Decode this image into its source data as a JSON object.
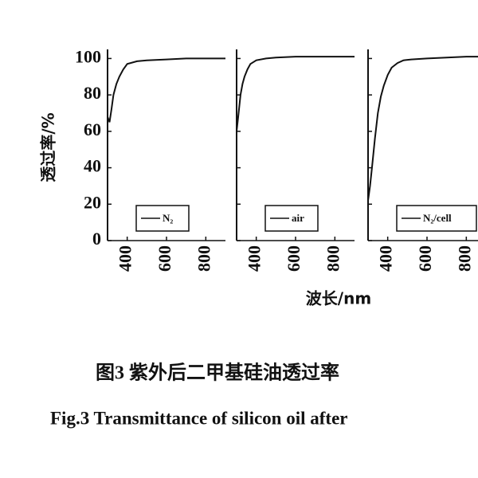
{
  "chart_data": [
    {
      "type": "line",
      "ylabel": "透过率/%",
      "xlim": [
        300,
        900
      ],
      "ylim": [
        0,
        105
      ],
      "xticks": [
        400,
        600,
        800
      ],
      "yticks": [
        0,
        20,
        40,
        60,
        80,
        100
      ],
      "x": [
        300,
        310,
        320,
        330,
        345,
        360,
        380,
        400,
        450,
        500,
        600,
        700,
        800,
        900
      ],
      "series": [
        {
          "name": "N₂",
          "color": "#111111",
          "values": [
            68,
            65,
            72,
            80,
            86,
            90,
            94,
            97,
            98.5,
            99,
            99.5,
            100,
            100,
            100
          ]
        }
      ]
    },
    {
      "type": "line",
      "xlabel": "波长/nm",
      "xlim": [
        300,
        900
      ],
      "ylim": [
        0,
        105
      ],
      "xticks": [
        400,
        600,
        800
      ],
      "x": [
        300,
        310,
        320,
        330,
        340,
        355,
        370,
        400,
        450,
        500,
        600,
        700,
        800,
        900
      ],
      "series": [
        {
          "name": "air",
          "color": "#111111",
          "values": [
            60,
            70,
            80,
            86,
            90,
            94,
            97,
            99,
            100,
            100.5,
            101,
            101,
            101,
            101
          ]
        }
      ]
    },
    {
      "type": "line",
      "xlim": [
        300,
        900
      ],
      "ylim": [
        0,
        105
      ],
      "xticks": [
        400,
        600,
        800
      ],
      "x": [
        300,
        310,
        320,
        335,
        350,
        365,
        380,
        400,
        420,
        450,
        480,
        520,
        600,
        700,
        800,
        900
      ],
      "series": [
        {
          "name": "N₂/cell",
          "color": "#111111",
          "values": [
            22,
            30,
            40,
            56,
            70,
            79,
            85,
            91,
            95,
            97.5,
            99,
            99.5,
            100,
            100.5,
            101,
            101
          ]
        }
      ]
    }
  ],
  "caption": {
    "zh": "图3  紫外后二甲基硅油透过率",
    "en": "Fig.3  Transmittance of silicon oil after"
  }
}
